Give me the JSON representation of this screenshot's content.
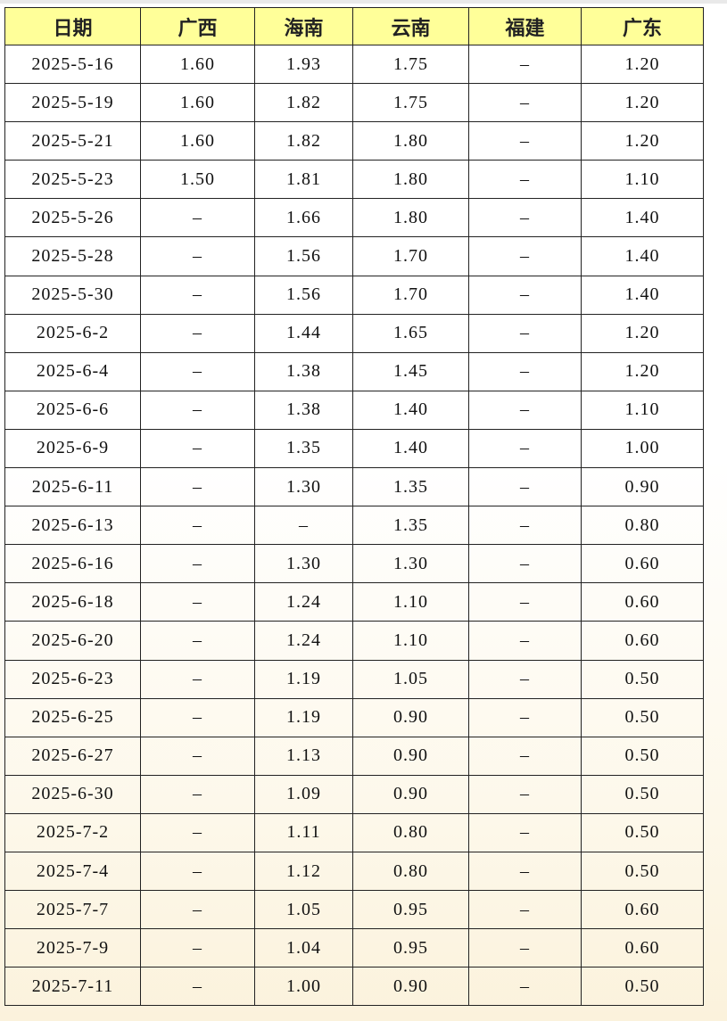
{
  "table": {
    "header": [
      "日期",
      "广西",
      "海南",
      "云南",
      "福建",
      "广东"
    ],
    "rows": [
      [
        "2025-5-16",
        "1.60",
        "1.93",
        "1.75",
        "–",
        "1.20"
      ],
      [
        "2025-5-19",
        "1.60",
        "1.82",
        "1.75",
        "–",
        "1.20"
      ],
      [
        "2025-5-21",
        "1.60",
        "1.82",
        "1.80",
        "–",
        "1.20"
      ],
      [
        "2025-5-23",
        "1.50",
        "1.81",
        "1.80",
        "–",
        "1.10"
      ],
      [
        "2025-5-26",
        "–",
        "1.66",
        "1.80",
        "–",
        "1.40"
      ],
      [
        "2025-5-28",
        "–",
        "1.56",
        "1.70",
        "–",
        "1.40"
      ],
      [
        "2025-5-30",
        "–",
        "1.56",
        "1.70",
        "–",
        "1.40"
      ],
      [
        "2025-6-2",
        "–",
        "1.44",
        "1.65",
        "–",
        "1.20"
      ],
      [
        "2025-6-4",
        "–",
        "1.38",
        "1.45",
        "–",
        "1.20"
      ],
      [
        "2025-6-6",
        "–",
        "1.38",
        "1.40",
        "–",
        "1.10"
      ],
      [
        "2025-6-9",
        "–",
        "1.35",
        "1.40",
        "–",
        "1.00"
      ],
      [
        "2025-6-11",
        "–",
        "1.30",
        "1.35",
        "–",
        "0.90"
      ],
      [
        "2025-6-13",
        "–",
        "–",
        "1.35",
        "–",
        "0.80"
      ],
      [
        "2025-6-16",
        "–",
        "1.30",
        "1.30",
        "–",
        "0.60"
      ],
      [
        "2025-6-18",
        "–",
        "1.24",
        "1.10",
        "–",
        "0.60"
      ],
      [
        "2025-6-20",
        "–",
        "1.24",
        "1.10",
        "–",
        "0.60"
      ],
      [
        "2025-6-23",
        "–",
        "1.19",
        "1.05",
        "–",
        "0.50"
      ],
      [
        "2025-6-25",
        "–",
        "1.19",
        "0.90",
        "–",
        "0.50"
      ],
      [
        "2025-6-27",
        "–",
        "1.13",
        "0.90",
        "–",
        "0.50"
      ],
      [
        "2025-6-30",
        "–",
        "1.09",
        "0.90",
        "–",
        "0.50"
      ],
      [
        "2025-7-2",
        "–",
        "1.11",
        "0.80",
        "–",
        "0.50"
      ],
      [
        "2025-7-4",
        "–",
        "1.12",
        "0.80",
        "–",
        "0.50"
      ],
      [
        "2025-7-7",
        "–",
        "1.05",
        "0.95",
        "–",
        "0.60"
      ],
      [
        "2025-7-9",
        "–",
        "1.04",
        "0.95",
        "–",
        "0.60"
      ],
      [
        "2025-7-11",
        "–",
        "1.00",
        "0.90",
        "–",
        "0.50"
      ]
    ]
  }
}
